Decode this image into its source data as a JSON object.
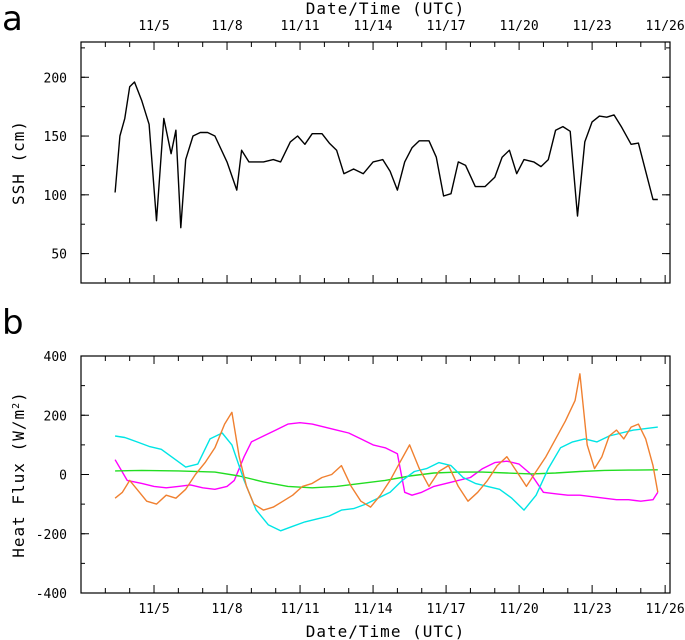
{
  "panels": [
    {
      "letter": "a"
    },
    {
      "letter": "b"
    }
  ],
  "chart_data": [
    {
      "type": "line",
      "panel": "a",
      "xlabel": "Date/Time (UTC)",
      "ylabel": "SSH (cm)",
      "x_ticks": [
        "11/5",
        "11/8",
        "11/11",
        "11/14",
        "11/17",
        "11/20",
        "11/23",
        "11/26"
      ],
      "x_tick_days": [
        5,
        8,
        11,
        14,
        17,
        20,
        23,
        26
      ],
      "xlim": [
        2.0,
        26.2
      ],
      "ylim": [
        25,
        230
      ],
      "y_ticks": [
        50,
        100,
        150,
        200
      ],
      "series": [
        {
          "color": "#000000",
          "x": [
            3.4,
            3.6,
            3.8,
            4.0,
            4.2,
            4.5,
            4.8,
            5.1,
            5.4,
            5.7,
            5.9,
            6.1,
            6.3,
            6.6,
            6.9,
            7.2,
            7.5,
            8.0,
            8.4,
            8.6,
            8.9,
            9.2,
            9.5,
            9.9,
            10.2,
            10.6,
            10.9,
            11.2,
            11.5,
            11.9,
            12.2,
            12.5,
            12.8,
            13.2,
            13.6,
            14.0,
            14.4,
            14.7,
            15.0,
            15.3,
            15.6,
            15.9,
            16.3,
            16.6,
            16.9,
            17.2,
            17.5,
            17.8,
            18.2,
            18.6,
            19.0,
            19.3,
            19.6,
            19.9,
            20.2,
            20.6,
            20.9,
            21.2,
            21.5,
            21.8,
            22.1,
            22.4,
            22.7,
            23.0,
            23.3,
            23.6,
            23.9,
            24.2,
            24.6,
            24.9,
            25.2,
            25.5,
            25.7
          ],
          "y": [
            102,
            150,
            165,
            192,
            196,
            180,
            160,
            78,
            165,
            135,
            155,
            72,
            130,
            150,
            153,
            153,
            150,
            128,
            104,
            138,
            128,
            128,
            128,
            130,
            128,
            145,
            150,
            143,
            152,
            152,
            144,
            138,
            118,
            122,
            118,
            128,
            130,
            120,
            104,
            128,
            140,
            146,
            146,
            132,
            99,
            101,
            128,
            125,
            107,
            107,
            115,
            132,
            138,
            118,
            130,
            128,
            124,
            130,
            155,
            158,
            154,
            82,
            145,
            162,
            167,
            166,
            168,
            158,
            143,
            144,
            120,
            96,
            96
          ]
        }
      ]
    },
    {
      "type": "line",
      "panel": "b",
      "xlabel": "Date/Time (UTC)",
      "ylabel": "Heat Flux (W/m",
      "ylabel_sup": "2",
      "ylabel_end": ")",
      "x_ticks": [
        "11/5",
        "11/8",
        "11/11",
        "11/14",
        "11/17",
        "11/20",
        "11/23",
        "11/26"
      ],
      "x_tick_days": [
        5,
        8,
        11,
        14,
        17,
        20,
        23,
        26
      ],
      "xlim": [
        2.0,
        26.2
      ],
      "ylim": [
        -400,
        400
      ],
      "y_ticks": [
        -400,
        -200,
        0,
        200,
        400
      ],
      "series": [
        {
          "color": "#ff00ff",
          "x": [
            3.4,
            3.9,
            4.5,
            5.0,
            5.5,
            6.0,
            6.5,
            7.0,
            7.5,
            8.0,
            8.3,
            8.7,
            9.0,
            9.5,
            10.0,
            10.5,
            11.0,
            11.5,
            12.0,
            12.5,
            13.0,
            13.5,
            14.0,
            14.5,
            15.0,
            15.3,
            15.6,
            16.0,
            16.5,
            17.0,
            17.5,
            18.0,
            18.5,
            19.0,
            19.5,
            20.0,
            20.5,
            21.0,
            21.5,
            22.0,
            22.5,
            23.0,
            23.5,
            24.0,
            24.5,
            25.0,
            25.5,
            25.7
          ],
          "y": [
            50,
            -20,
            -30,
            -40,
            -45,
            -40,
            -35,
            -45,
            -50,
            -40,
            -20,
            60,
            110,
            130,
            150,
            170,
            175,
            170,
            160,
            150,
            140,
            120,
            100,
            90,
            70,
            -60,
            -70,
            -60,
            -40,
            -30,
            -20,
            -10,
            20,
            40,
            45,
            35,
            0,
            -60,
            -65,
            -70,
            -70,
            -75,
            -80,
            -85,
            -85,
            -90,
            -85,
            -60
          ]
        },
        {
          "color": "#22dd22",
          "x": [
            3.4,
            4.5,
            6.0,
            7.5,
            8.5,
            9.5,
            10.5,
            11.5,
            12.5,
            13.5,
            14.5,
            15.5,
            16.5,
            17.5,
            18.5,
            19.5,
            20.5,
            21.5,
            22.5,
            23.5,
            24.5,
            25.7
          ],
          "y": [
            12,
            14,
            12,
            8,
            -5,
            -25,
            -40,
            -45,
            -40,
            -30,
            -20,
            -5,
            5,
            8,
            8,
            5,
            2,
            5,
            10,
            14,
            15,
            16
          ]
        },
        {
          "color": "#00e5e5",
          "x": [
            3.4,
            3.8,
            4.3,
            4.8,
            5.3,
            5.8,
            6.3,
            6.8,
            7.3,
            7.8,
            8.2,
            8.7,
            9.2,
            9.7,
            10.2,
            10.7,
            11.2,
            11.7,
            12.2,
            12.7,
            13.2,
            13.7,
            14.2,
            14.7,
            15.2,
            15.7,
            16.2,
            16.7,
            17.2,
            17.7,
            18.2,
            18.7,
            19.2,
            19.7,
            20.2,
            20.7,
            21.2,
            21.7,
            22.2,
            22.7,
            23.2,
            23.7,
            24.2,
            24.7,
            25.2,
            25.7
          ],
          "y": [
            130,
            125,
            110,
            95,
            85,
            55,
            25,
            35,
            120,
            140,
            100,
            -20,
            -120,
            -170,
            -190,
            -175,
            -160,
            -150,
            -140,
            -120,
            -115,
            -100,
            -80,
            -60,
            -20,
            10,
            20,
            40,
            30,
            -10,
            -30,
            -40,
            -50,
            -80,
            -120,
            -70,
            20,
            90,
            110,
            120,
            110,
            130,
            140,
            150,
            155,
            160
          ]
        },
        {
          "color": "#f08030",
          "x": [
            3.4,
            3.7,
            4.0,
            4.3,
            4.7,
            5.1,
            5.5,
            5.9,
            6.3,
            6.7,
            7.1,
            7.5,
            7.9,
            8.2,
            8.5,
            8.8,
            9.1,
            9.5,
            9.9,
            10.3,
            10.7,
            11.1,
            11.5,
            11.9,
            12.3,
            12.7,
            13.1,
            13.5,
            13.9,
            14.3,
            14.7,
            15.1,
            15.5,
            15.9,
            16.3,
            16.7,
            17.1,
            17.5,
            17.9,
            18.3,
            18.7,
            19.1,
            19.5,
            19.9,
            20.3,
            20.7,
            21.1,
            21.5,
            21.9,
            22.3,
            22.5,
            22.8,
            23.1,
            23.4,
            23.7,
            24.0,
            24.3,
            24.6,
            24.9,
            25.2,
            25.5,
            25.7
          ],
          "y": [
            -80,
            -60,
            -20,
            -50,
            -90,
            -100,
            -70,
            -80,
            -50,
            0,
            40,
            90,
            170,
            210,
            60,
            -40,
            -100,
            -120,
            -110,
            -90,
            -70,
            -40,
            -30,
            -10,
            0,
            30,
            -40,
            -90,
            -110,
            -70,
            -20,
            40,
            100,
            20,
            -40,
            10,
            30,
            -40,
            -90,
            -60,
            -20,
            30,
            60,
            10,
            -40,
            10,
            60,
            120,
            180,
            250,
            340,
            100,
            20,
            60,
            130,
            150,
            120,
            160,
            170,
            120,
            30,
            -60
          ]
        }
      ]
    }
  ]
}
